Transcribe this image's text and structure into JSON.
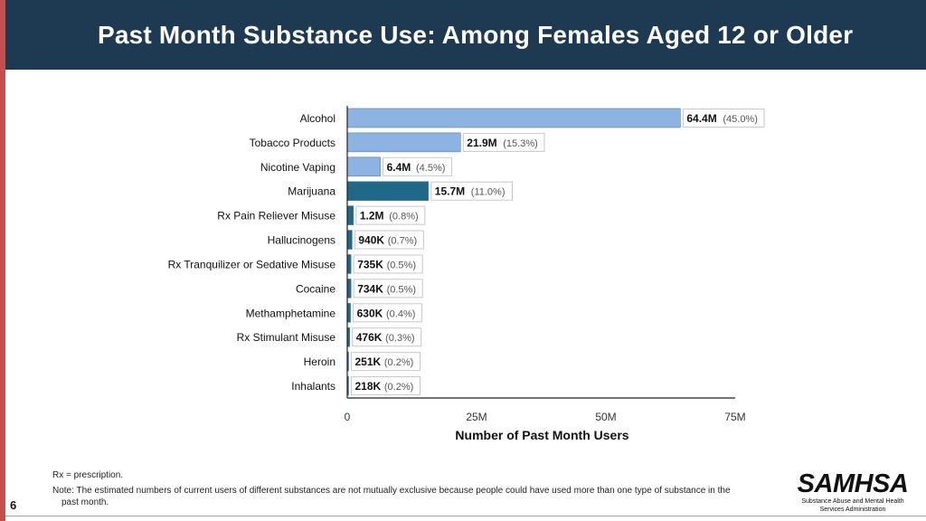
{
  "slide": {
    "title": "Past Month Substance Use: Among Females Aged 12 or Older",
    "number": "6",
    "footnote_1": "Rx = prescription.",
    "footnote_2a": "Note: The estimated numbers of current users of different substances are not mutually exclusive because people could have used more than one type of substance in the",
    "footnote_2b": "past month.",
    "logo": {
      "word": "SAMHSA",
      "line1": "Substance Abuse and Mental Health",
      "line2": "Services Administration"
    }
  },
  "colors": {
    "header_bg": "#1d3a52",
    "accent_red": "#c0504d",
    "bar_light": "#8db3e2",
    "bar_dark": "#1f6887"
  },
  "chart_data": {
    "type": "bar",
    "orientation": "horizontal",
    "title": "",
    "xlabel": "Number of Past Month Users",
    "ylabel": "",
    "xlim": [
      0,
      75000000
    ],
    "xticks": [
      0,
      25000000,
      50000000,
      75000000
    ],
    "xtick_labels": [
      "0",
      "25M",
      "50M",
      "75M"
    ],
    "grid": false,
    "categories": [
      "Alcohol",
      "Tobacco Products",
      "Nicotine Vaping",
      "Marijuana",
      "Rx Pain Reliever Misuse",
      "Hallucinogens",
      "Rx Tranquilizer or Sedative Misuse",
      "Cocaine",
      "Methamphetamine",
      "Rx Stimulant Misuse",
      "Heroin",
      "Inhalants"
    ],
    "values": [
      64400000,
      21900000,
      6400000,
      15700000,
      1200000,
      940000,
      735000,
      734000,
      630000,
      476000,
      251000,
      218000
    ],
    "value_labels": [
      "64.4M",
      "21.9M",
      "6.4M",
      "15.7M",
      "1.2M",
      "940K",
      "735K",
      "734K",
      "630K",
      "476K",
      "251K",
      "218K"
    ],
    "percent_labels": [
      "(45.0%)",
      "(15.3%)",
      "(4.5%)",
      "(11.0%)",
      "(0.8%)",
      "(0.7%)",
      "(0.5%)",
      "(0.5%)",
      "(0.4%)",
      "(0.3%)",
      "(0.2%)",
      "(0.2%)"
    ],
    "bar_colors": [
      "#8db3e2",
      "#8db3e2",
      "#8db3e2",
      "#1f6887",
      "#1f6887",
      "#1f6887",
      "#1f6887",
      "#1f6887",
      "#1f6887",
      "#1f6887",
      "#1f6887",
      "#1f6887"
    ]
  }
}
